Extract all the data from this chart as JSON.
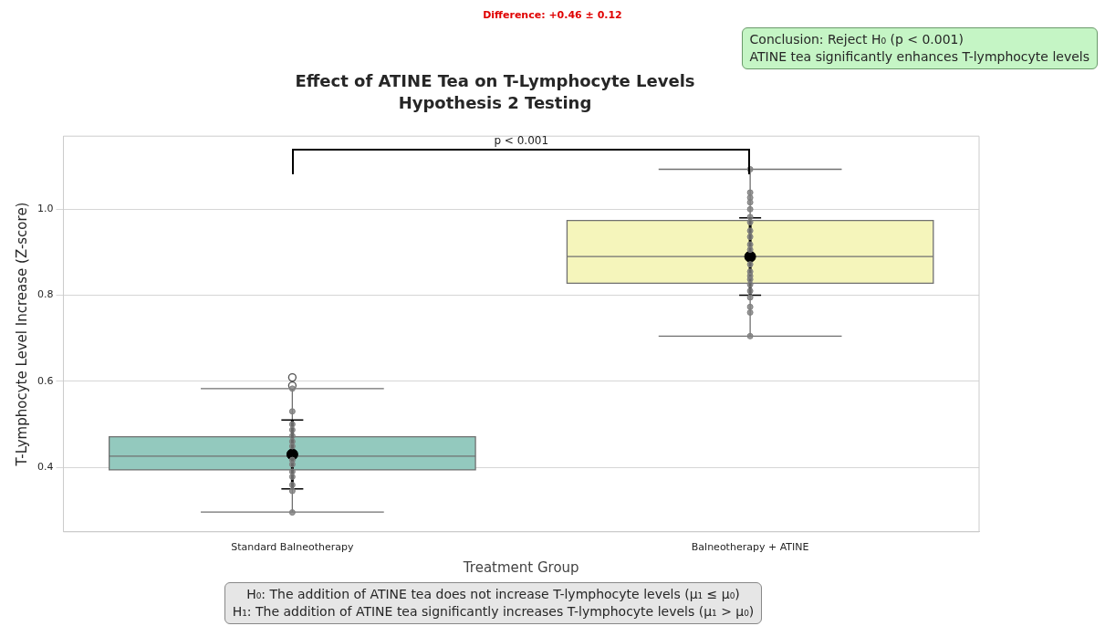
{
  "chart_data": {
    "type": "box",
    "title": "Effect of ATINE Tea on T-Lymphocyte Levels",
    "subtitle": "Hypothesis 2 Testing",
    "xlabel": "Treatment Group",
    "ylabel": "T-Lymphocyte Level Increase (Z-score)",
    "categories": [
      "Standard Balneotherapy",
      "Balneotherapy + ATINE"
    ],
    "colors": [
      "#93c9be",
      "#f5f5bb"
    ],
    "boxes": [
      {
        "low": 0.296,
        "q1": 0.394,
        "median": 0.426,
        "q3": 0.471,
        "high": 0.583,
        "outliers": [
          0.609,
          0.59
        ]
      },
      {
        "low": 0.705,
        "q1": 0.828,
        "median": 0.89,
        "q3": 0.974,
        "high": 1.093
      }
    ],
    "series": [
      {
        "type": "scatter",
        "color": "#808080",
        "x": [
          "Standard Balneotherapy",
          "Standard Balneotherapy",
          "Standard Balneotherapy",
          "Standard Balneotherapy",
          "Standard Balneotherapy",
          "Standard Balneotherapy",
          "Standard Balneotherapy",
          "Standard Balneotherapy",
          "Standard Balneotherapy",
          "Standard Balneotherapy",
          "Standard Balneotherapy",
          "Standard Balneotherapy",
          "Standard Balneotherapy",
          "Standard Balneotherapy",
          "Standard Balneotherapy",
          "Balneotherapy + ATINE",
          "Balneotherapy + ATINE",
          "Balneotherapy + ATINE",
          "Balneotherapy + ATINE",
          "Balneotherapy + ATINE",
          "Balneotherapy + ATINE",
          "Balneotherapy + ATINE",
          "Balneotherapy + ATINE",
          "Balneotherapy + ATINE",
          "Balneotherapy + ATINE",
          "Balneotherapy + ATINE",
          "Balneotherapy + ATINE",
          "Balneotherapy + ATINE",
          "Balneotherapy + ATINE",
          "Balneotherapy + ATINE",
          "Balneotherapy + ATINE",
          "Balneotherapy + ATINE",
          "Balneotherapy + ATINE",
          "Balneotherapy + ATINE",
          "Balneotherapy + ATINE",
          "Balneotherapy + ATINE"
        ],
        "values": [
          0.583,
          0.53,
          0.5,
          0.473,
          0.46,
          0.449,
          0.417,
          null,
          0.39,
          0.378,
          0.359,
          0.345,
          0.295,
          0.487,
          0.407,
          1.093,
          1.039,
          1.027,
          1.016,
          1.0,
          0.982,
          0.97,
          0.936,
          0.918,
          0.906,
          0.872,
          0.855,
          0.837,
          0.825,
          0.81,
          0.795,
          0.773,
          0.76,
          0.705,
          0.95,
          0.845
        ]
      },
      {
        "type": "scatter",
        "color": "#000000",
        "x": [
          "Standard Balneotherapy",
          "Balneotherapy + ATINE"
        ],
        "values": [
          0.43,
          0.89
        ],
        "errors": [
          [
            0.35,
            0.51
          ],
          [
            0.8,
            0.98
          ]
        ]
      }
    ],
    "ylim": [
      0.25,
      1.17
    ],
    "yticks": [
      0.4,
      0.6,
      0.8,
      {
        "value": 1.0,
        "label": "1.0"
      }
    ],
    "grid": "y",
    "annotations": [
      "Difference: +0.46 ± 0.12",
      "p < 0.001",
      "Conclusion: Reject H₀ (p < 0.001)\nATINE tea significantly enhances T-lymphocyte levels",
      "H₀: The addition of ATINE tea does not increase T-lymphocyte levels (μ₁ ≤ μ₀)\nH₁: The addition of ATINE tea significantly increases T-lymphocyte levels (μ₁ > μ₀)"
    ]
  }
}
